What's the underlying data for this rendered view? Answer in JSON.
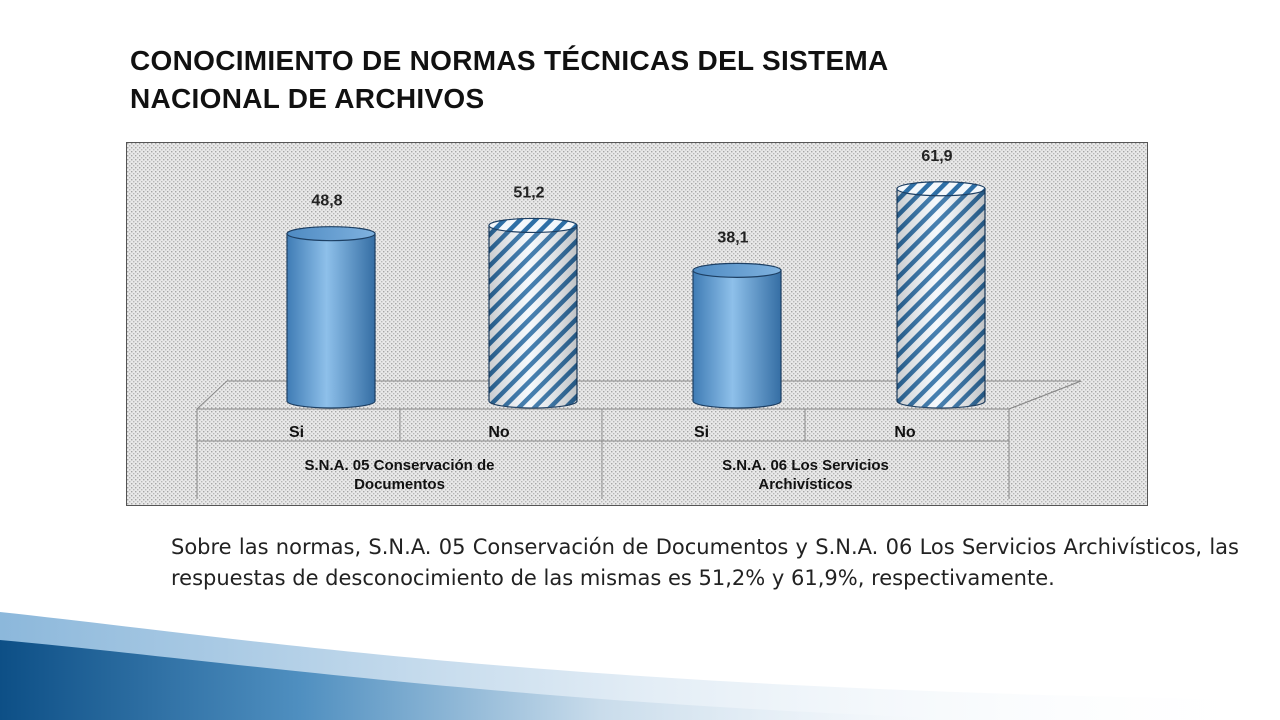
{
  "slide": {
    "title_line1": "CONOCIMIENTO DE NORMAS  TÉCNICAS DEL SISTEMA",
    "title_line2": "NACIONAL DE ARCHIVOS",
    "caption": "Sobre las normas, S.N.A. 05 Conservación de Documentos y S.N.A. 06 Los Servicios Archivísticos, las respuestas de desconocimiento de las mismas es  51,2% y 61,9%, respectivamente."
  },
  "colors": {
    "accent_blue": "#1f5f8f",
    "bar_solid": "#5b9bd5",
    "bar_hatched_stripe": "#2e6fa6"
  },
  "chart_data": {
    "type": "bar",
    "style": "3d-cylinder",
    "background_pattern": "dotted",
    "legend": "none",
    "categories": [
      "Si",
      "No",
      "Si",
      "No"
    ],
    "groups": [
      {
        "label": "S.N.A. 05  Conservación de Documentos",
        "label_line1": "S.N.A. 05  Conservación de",
        "label_line2": "Documentos",
        "span": [
          0,
          1
        ]
      },
      {
        "label": "S.N.A. 06 Los Servicios Archivísticos",
        "label_line1": "S.N.A. 06 Los Servicios",
        "label_line2": "Archivísticos",
        "span": [
          2,
          3
        ]
      }
    ],
    "values": [
      48.8,
      51.2,
      38.1,
      61.9
    ],
    "value_labels": [
      "48,8",
      "51,2",
      "38,1",
      "61,9"
    ],
    "bar_fill": [
      "solid",
      "hatched",
      "solid",
      "hatched"
    ],
    "ylim": [
      0,
      70
    ]
  }
}
